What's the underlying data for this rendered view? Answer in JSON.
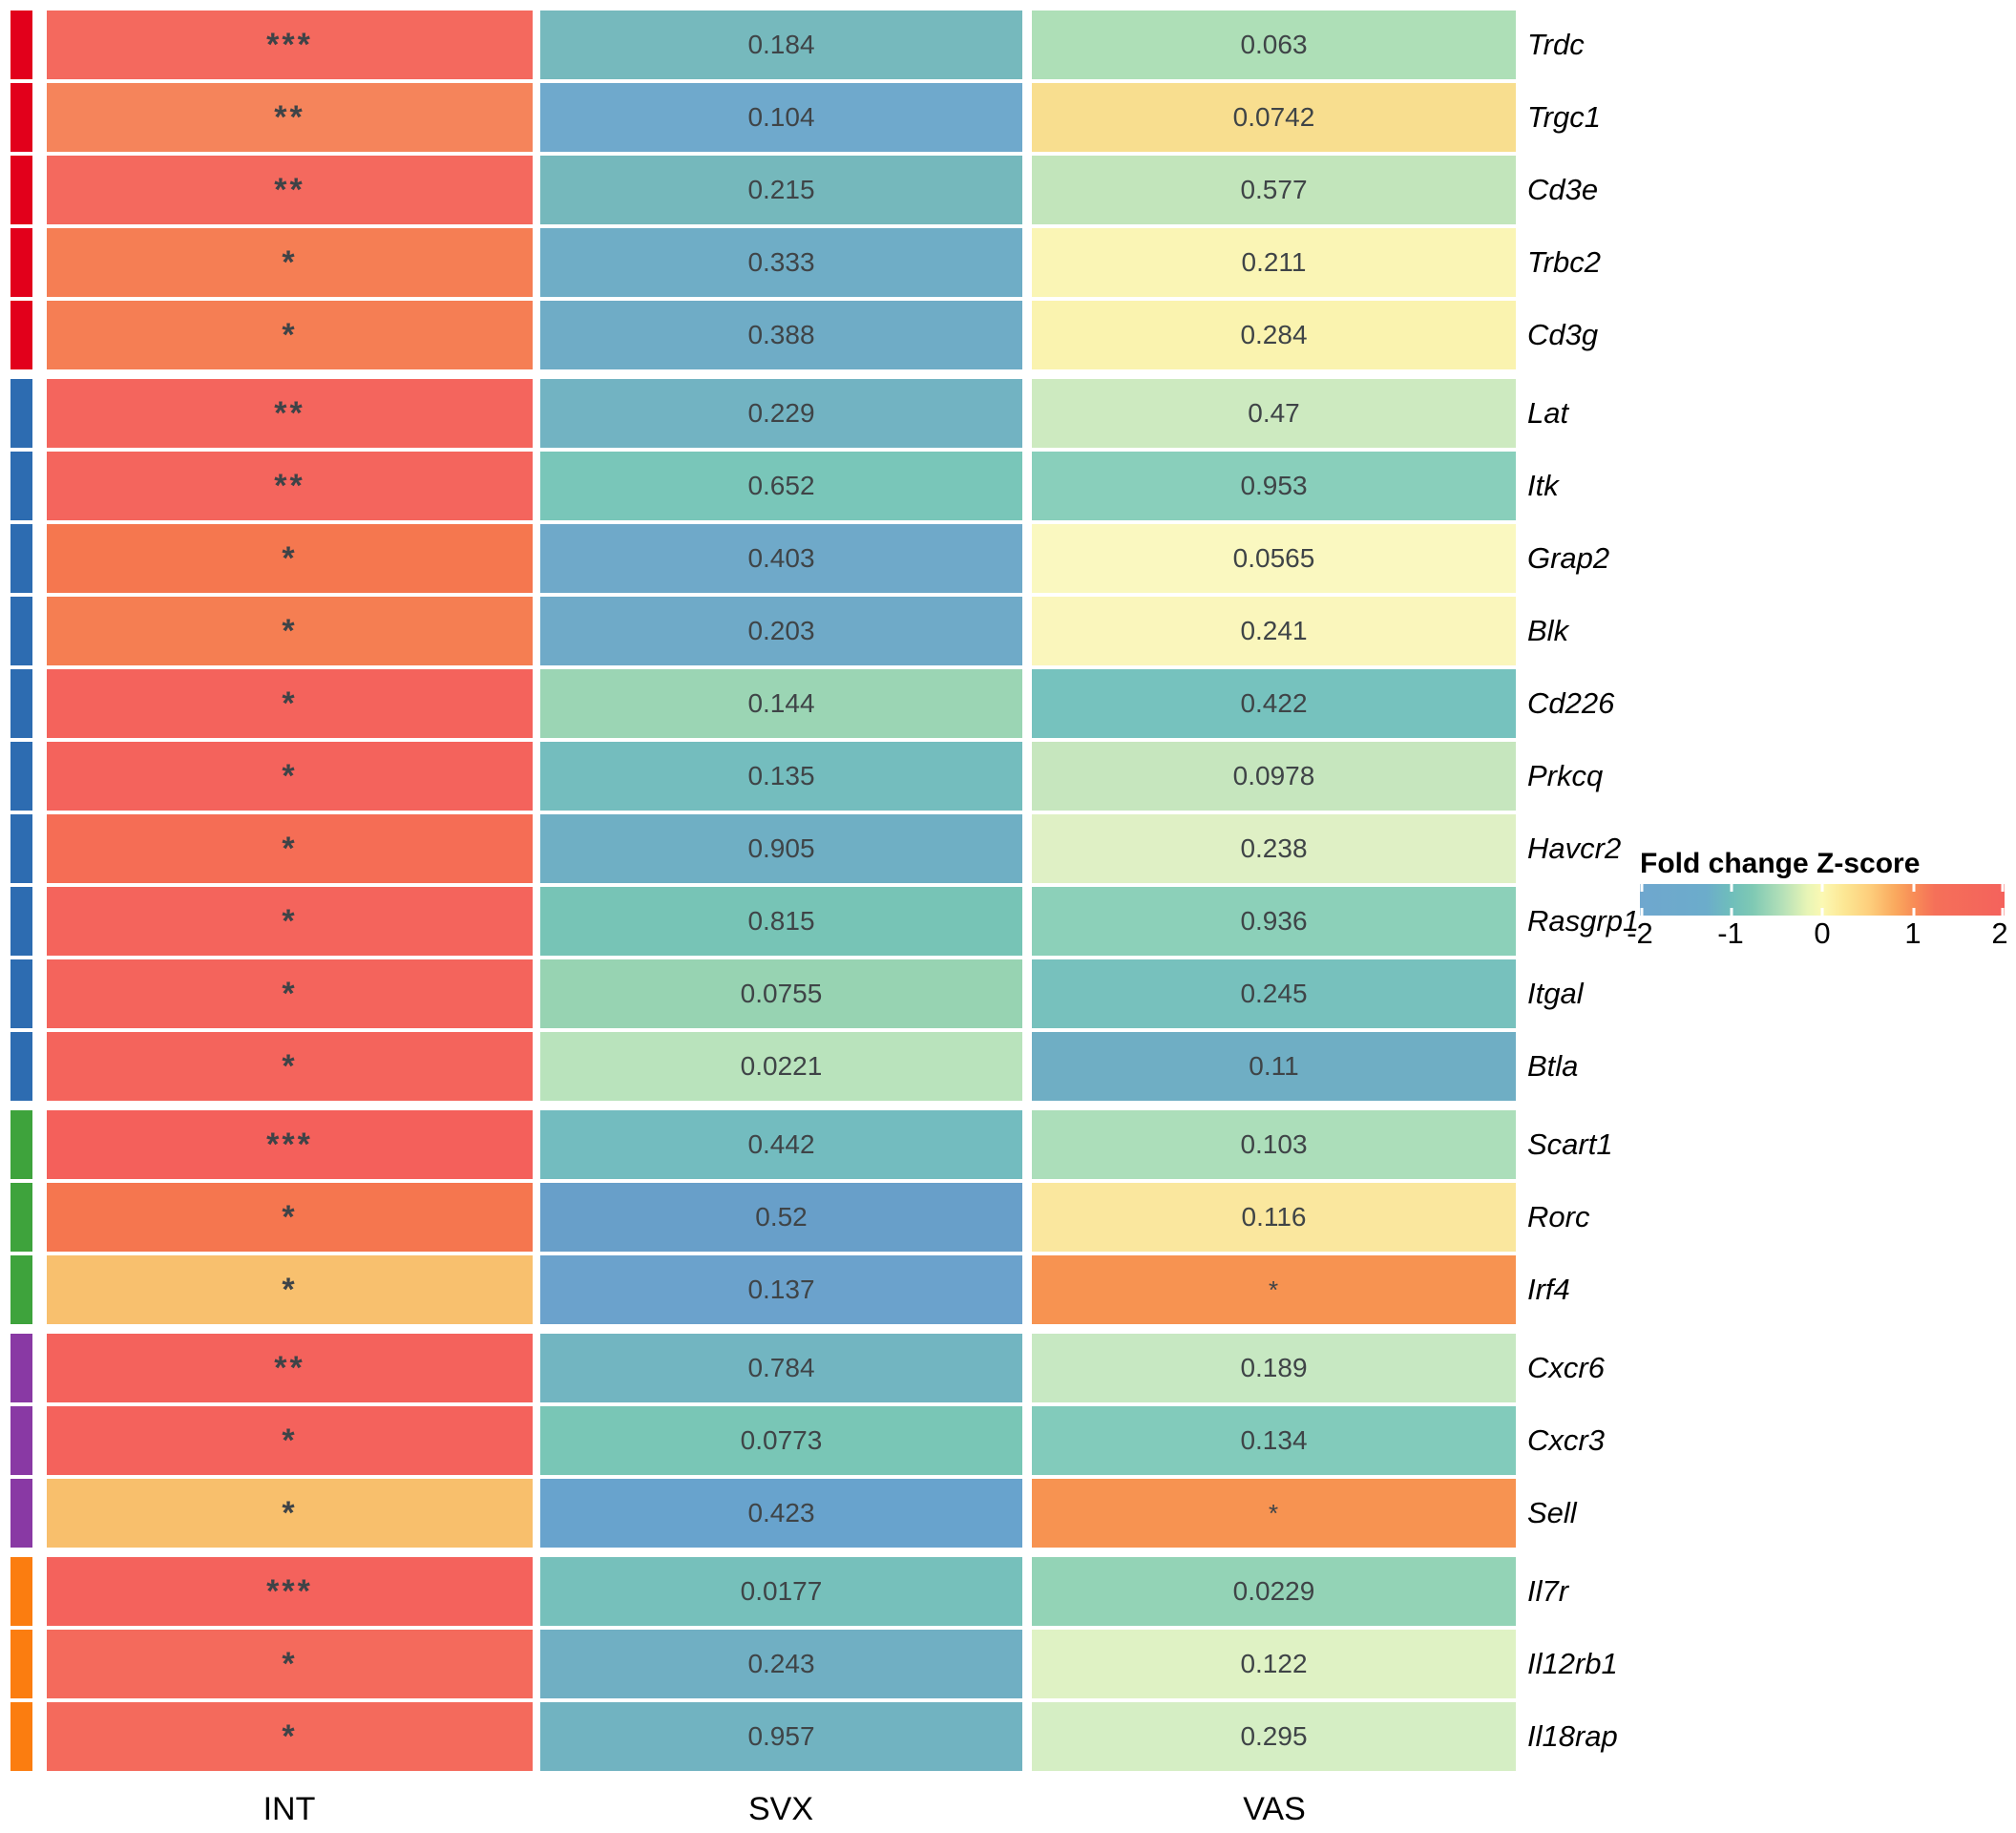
{
  "legend": {
    "title": "Fold change Z-score",
    "tick_labels": [
      "-2",
      "-1",
      "0",
      "1",
      "2"
    ]
  },
  "columns": [
    "INT",
    "SVX",
    "VAS"
  ],
  "chart_data": {
    "type": "heatmap",
    "columns": [
      "INT",
      "SVX",
      "VAS"
    ],
    "cell_text_meaning": "asterisks = significance stars, numbers = p-values",
    "legend": {
      "title": "Fold change Z-score",
      "min": -2,
      "max": 2,
      "ticks": [
        -2,
        -1,
        0,
        1,
        2
      ],
      "palette_stops": [
        "#6fa7ce",
        "#6fbebb",
        "#b4e0b8",
        "#fbf8b3",
        "#fdce7c",
        "#f88d57",
        "#f4625c"
      ]
    },
    "group_colors": [
      "#e2001b",
      "#2d6cb1",
      "#3ea33c",
      "#8939a4",
      "#fb7d10"
    ],
    "rows": [
      {
        "gene": "Trdc",
        "group": 0,
        "INT": {
          "text": "***",
          "color": "#f4695e"
        },
        "SVX": {
          "text": "0.184",
          "color": "#76b9bd"
        },
        "VAS": {
          "text": "0.063",
          "color": "#aedfb7"
        }
      },
      {
        "gene": "Trgc1",
        "group": 0,
        "INT": {
          "text": "**",
          "color": "#f5845b"
        },
        "SVX": {
          "text": "0.104",
          "color": "#6fa9cc"
        },
        "VAS": {
          "text": "0.0742",
          "color": "#f8de8f"
        }
      },
      {
        "gene": "Cd3e",
        "group": 0,
        "INT": {
          "text": "**",
          "color": "#f4695e"
        },
        "SVX": {
          "text": "0.215",
          "color": "#75b8bc"
        },
        "VAS": {
          "text": "0.577",
          "color": "#c2e5bb"
        }
      },
      {
        "gene": "Trbc2",
        "group": 0,
        "INT": {
          "text": "*",
          "color": "#f57e54"
        },
        "SVX": {
          "text": "0.333",
          "color": "#6fadc6"
        },
        "VAS": {
          "text": "0.211",
          "color": "#faf5b5"
        }
      },
      {
        "gene": "Cd3g",
        "group": 0,
        "INT": {
          "text": "*",
          "color": "#f57e54"
        },
        "SVX": {
          "text": "0.388",
          "color": "#6facc6"
        },
        "VAS": {
          "text": "0.284",
          "color": "#faf3af"
        }
      },
      {
        "gene": "Lat",
        "group": 1,
        "INT": {
          "text": "**",
          "color": "#f4655d"
        },
        "SVX": {
          "text": "0.229",
          "color": "#72b3c2"
        },
        "VAS": {
          "text": "0.47",
          "color": "#cdeac0"
        }
      },
      {
        "gene": "Itk",
        "group": 1,
        "INT": {
          "text": "**",
          "color": "#f4655d"
        },
        "SVX": {
          "text": "0.652",
          "color": "#79c6b9"
        },
        "VAS": {
          "text": "0.953",
          "color": "#89cfbb"
        }
      },
      {
        "gene": "Grap2",
        "group": 1,
        "INT": {
          "text": "*",
          "color": "#f5774f"
        },
        "SVX": {
          "text": "0.403",
          "color": "#6fa9c9"
        },
        "VAS": {
          "text": "0.0565",
          "color": "#faf8c0"
        }
      },
      {
        "gene": "Blk",
        "group": 1,
        "INT": {
          "text": "*",
          "color": "#f57e52"
        },
        "SVX": {
          "text": "0.203",
          "color": "#6faac8"
        },
        "VAS": {
          "text": "0.241",
          "color": "#faf6bc"
        }
      },
      {
        "gene": "Cd226",
        "group": 1,
        "INT": {
          "text": "*",
          "color": "#f4635c"
        },
        "SVX": {
          "text": "0.144",
          "color": "#9bd5b4"
        },
        "VAS": {
          "text": "0.422",
          "color": "#76c2be"
        }
      },
      {
        "gene": "Prkcq",
        "group": 1,
        "INT": {
          "text": "*",
          "color": "#f4635c"
        },
        "SVX": {
          "text": "0.135",
          "color": "#74bdbe"
        },
        "VAS": {
          "text": "0.0978",
          "color": "#c6e6be"
        }
      },
      {
        "gene": "Havcr2",
        "group": 1,
        "INT": {
          "text": "*",
          "color": "#f56d55"
        },
        "SVX": {
          "text": "0.905",
          "color": "#6fafc4"
        },
        "VAS": {
          "text": "0.238",
          "color": "#dff0c5"
        }
      },
      {
        "gene": "Rasgrp1",
        "group": 1,
        "INT": {
          "text": "*",
          "color": "#f4645c"
        },
        "SVX": {
          "text": "0.815",
          "color": "#77c4b6"
        },
        "VAS": {
          "text": "0.936",
          "color": "#8cd0b9"
        }
      },
      {
        "gene": "Itgal",
        "group": 1,
        "INT": {
          "text": "*",
          "color": "#f4645c"
        },
        "SVX": {
          "text": "0.0755",
          "color": "#97d3b2"
        },
        "VAS": {
          "text": "0.245",
          "color": "#77c1bd"
        }
      },
      {
        "gene": "Btla",
        "group": 1,
        "INT": {
          "text": "*",
          "color": "#f4645c"
        },
        "SVX": {
          "text": "0.0221",
          "color": "#b9e3bc"
        },
        "VAS": {
          "text": "0.11",
          "color": "#6faec4"
        }
      },
      {
        "gene": "Scart1",
        "group": 2,
        "INT": {
          "text": "***",
          "color": "#f4605b"
        },
        "SVX": {
          "text": "0.442",
          "color": "#73bcbf"
        },
        "VAS": {
          "text": "0.103",
          "color": "#acdeba"
        }
      },
      {
        "gene": "Rorc",
        "group": 2,
        "INT": {
          "text": "*",
          "color": "#f5764f"
        },
        "SVX": {
          "text": "0.52",
          "color": "#689fc9"
        },
        "VAS": {
          "text": "0.116",
          "color": "#fae79e"
        }
      },
      {
        "gene": "Irf4",
        "group": 2,
        "INT": {
          "text": "*",
          "color": "#f8c06e"
        },
        "SVX": {
          "text": "0.137",
          "color": "#6ba2cc"
        },
        "VAS": {
          "text": "*",
          "color": "#f79351"
        }
      },
      {
        "gene": "Cxcr6",
        "group": 3,
        "INT": {
          "text": "**",
          "color": "#f4625c"
        },
        "SVX": {
          "text": "0.784",
          "color": "#72b5c1"
        },
        "VAS": {
          "text": "0.189",
          "color": "#c7e8c2"
        }
      },
      {
        "gene": "Cxcr3",
        "group": 3,
        "INT": {
          "text": "*",
          "color": "#f4625c"
        },
        "SVX": {
          "text": "0.0773",
          "color": "#79c6b6"
        },
        "VAS": {
          "text": "0.134",
          "color": "#82cbbb"
        }
      },
      {
        "gene": "Sell",
        "group": 3,
        "INT": {
          "text": "*",
          "color": "#f8bf6c"
        },
        "SVX": {
          "text": "0.423",
          "color": "#68a3cd"
        },
        "VAS": {
          "text": "*",
          "color": "#f79351"
        }
      },
      {
        "gene": "Il7r",
        "group": 4,
        "INT": {
          "text": "***",
          "color": "#f4625c"
        },
        "SVX": {
          "text": "0.0177",
          "color": "#76c0bb"
        },
        "VAS": {
          "text": "0.0229",
          "color": "#93d3b6"
        }
      },
      {
        "gene": "Il12rb1",
        "group": 4,
        "INT": {
          "text": "*",
          "color": "#f46a5c"
        },
        "SVX": {
          "text": "0.243",
          "color": "#70afc3"
        },
        "VAS": {
          "text": "0.122",
          "color": "#dff2c4"
        }
      },
      {
        "gene": "Il18rap",
        "group": 4,
        "INT": {
          "text": "*",
          "color": "#f46a5c"
        },
        "SVX": {
          "text": "0.957",
          "color": "#71b3c1"
        },
        "VAS": {
          "text": "0.295",
          "color": "#d5eec4"
        }
      }
    ]
  }
}
